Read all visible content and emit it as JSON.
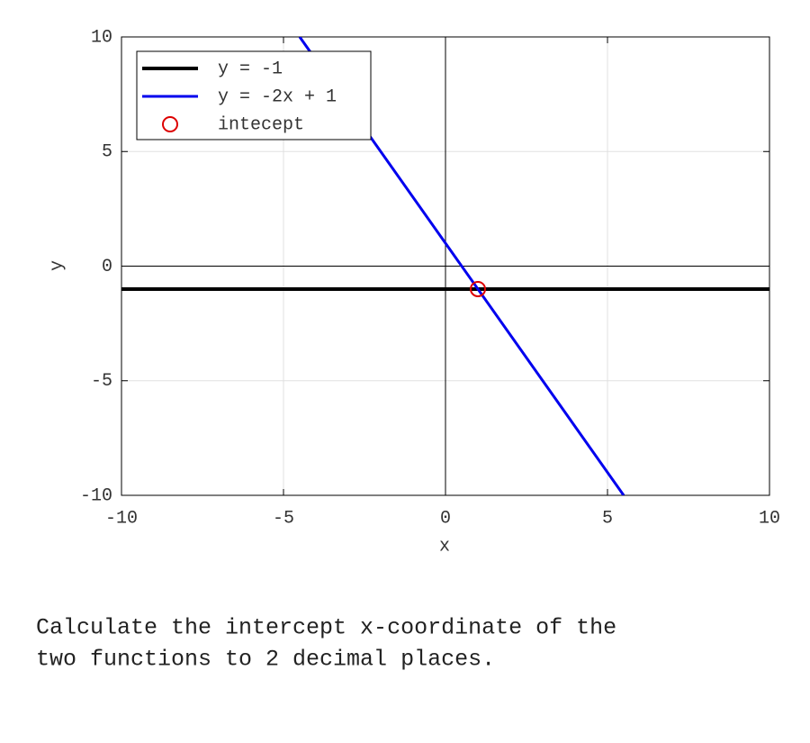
{
  "chart_data": {
    "type": "line",
    "xlabel": "x",
    "ylabel": "y",
    "xlim": [
      -10,
      10
    ],
    "ylim": [
      -10,
      10
    ],
    "xticks": [
      -10,
      -5,
      0,
      5,
      10
    ],
    "yticks": [
      -10,
      -5,
      0,
      5,
      10
    ],
    "grid": true,
    "legend": "upper left",
    "series": [
      {
        "name": "y = -1",
        "type": "line",
        "color": "#000000",
        "width": 4,
        "x": [
          -10,
          10
        ],
        "values": [
          -1,
          -1
        ]
      },
      {
        "name": "y = -2x + 1",
        "type": "line",
        "color": "#0000ee",
        "width": 3,
        "x": [
          -4.5,
          5.5
        ],
        "values": [
          10,
          -10
        ]
      },
      {
        "name": "intecept",
        "type": "scatter",
        "color": "#dd0000",
        "x": [
          1
        ],
        "values": [
          -1
        ]
      }
    ]
  },
  "question": [
    "Calculate the intercept x-coordinate of the",
    "two functions to 2 decimal places."
  ]
}
